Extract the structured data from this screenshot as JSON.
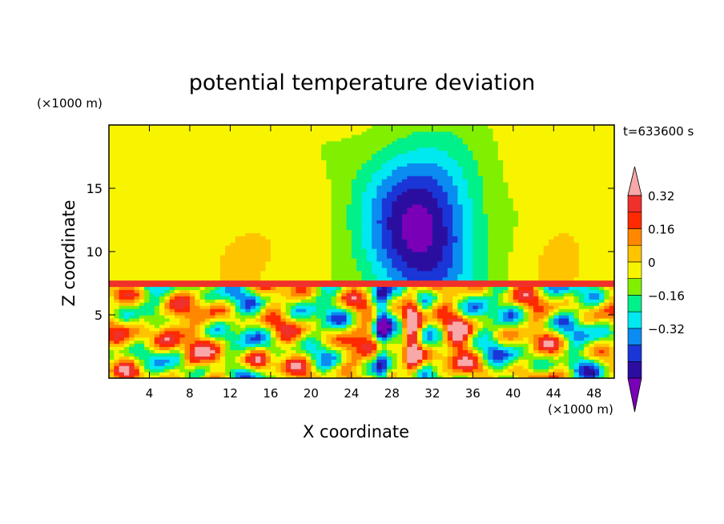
{
  "chart_data": {
    "type": "heatmap",
    "title": "potential temperature deviation",
    "xlabel": "X coordinate",
    "ylabel": "Z coordinate",
    "x_unit_label": "(×1000 m)",
    "y_unit_label": "(×1000 m)",
    "time_label": "t=633600 s",
    "x_ticks": [
      4,
      8,
      12,
      16,
      20,
      24,
      28,
      32,
      36,
      40,
      44,
      48
    ],
    "y_ticks": [
      5,
      10,
      15
    ],
    "xlim": [
      0,
      50
    ],
    "ylim": [
      0,
      20
    ],
    "colorbar": {
      "levels": [
        -0.48,
        -0.4,
        -0.32,
        -0.24,
        -0.16,
        -0.08,
        0,
        0.08,
        0.16,
        0.24,
        0.32,
        0.4
      ],
      "labels": [
        "0.32",
        "0.16",
        "0",
        "−0.16",
        "−0.32"
      ],
      "label_values": [
        0.32,
        0.16,
        0,
        -0.16,
        -0.32
      ],
      "colors_low_to_high": [
        "#7a00b8",
        "#2b0ea0",
        "#1a36d6",
        "#0a8cf0",
        "#00e8f0",
        "#00f08a",
        "#80f000",
        "#f8f400",
        "#ffc400",
        "#ff8800",
        "#ff2a00",
        "#f0302a",
        "#f8a8a8"
      ],
      "extend": "both"
    },
    "field_summary": {
      "upper_layer_z": [
        7.3,
        20
      ],
      "upper_layer_value_range": [
        -0.4,
        0.16
      ],
      "lower_layer_z": [
        0,
        7.3
      ],
      "lower_layer_value_range": [
        -0.48,
        0.48
      ],
      "features": [
        {
          "x": 31,
          "z": 10,
          "value": -0.4
        },
        {
          "x": 13.5,
          "z": 10,
          "value": 0.12
        },
        {
          "x": 44,
          "z": 10,
          "value": 0.12
        },
        {
          "x": 30,
          "z": 3,
          "value": 0.48
        },
        {
          "x": 27,
          "z": 3,
          "value": -0.4
        },
        {
          "x": 6,
          "z": 4,
          "value": 0.48
        }
      ]
    }
  }
}
